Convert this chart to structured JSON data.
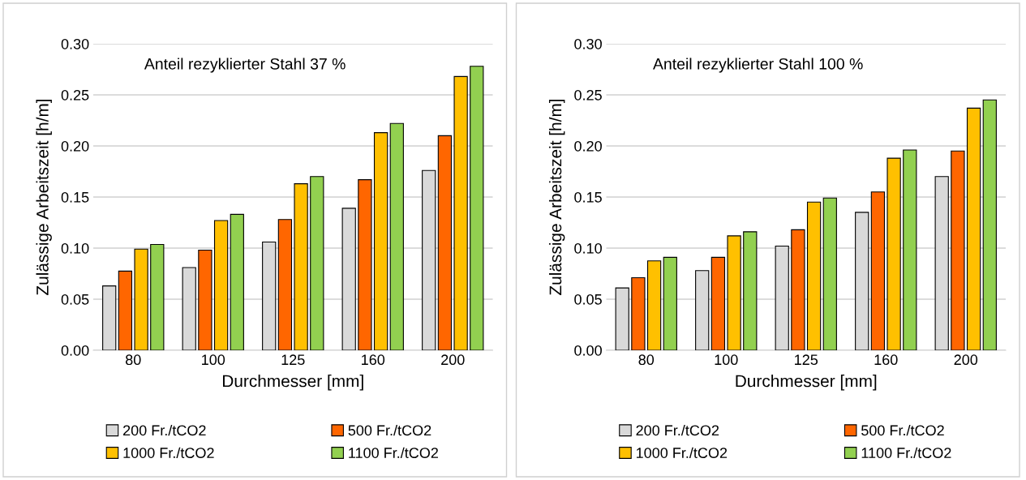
{
  "chart_data": [
    {
      "type": "bar",
      "title": "Anteil rezyklierter Stahl 37 %",
      "xlabel": "Durchmesser [mm]",
      "ylabel": "Zulässige Arbeitszeit [h/m]",
      "categories": [
        "80",
        "100",
        "125",
        "160",
        "200"
      ],
      "ylim": [
        0,
        0.3
      ],
      "yticks": [
        {
          "value": 0,
          "label": "0.00"
        },
        {
          "value": 0.05,
          "label": "0.05"
        },
        {
          "value": 0.1,
          "label": "0.10"
        },
        {
          "value": 0.15,
          "label": "0.15"
        },
        {
          "value": 0.2,
          "label": "0.20"
        },
        {
          "value": 0.25,
          "label": "0.25"
        },
        {
          "value": 0.3,
          "label": "0.30"
        }
      ],
      "grid": "y",
      "legend": "bottom",
      "series": [
        {
          "name": "200 Fr./tCO2",
          "color": "#d9d9d9",
          "values": [
            0.063,
            0.081,
            0.106,
            0.139,
            0.176
          ]
        },
        {
          "name": "500 Fr./tCO2",
          "color": "#ff6600",
          "values": [
            0.0775,
            0.098,
            0.128,
            0.167,
            0.21
          ]
        },
        {
          "name": "1000 Fr./tCO2",
          "color": "#ffc000",
          "values": [
            0.099,
            0.127,
            0.163,
            0.213,
            0.268
          ]
        },
        {
          "name": "1100 Fr./tCO2",
          "color": "#92d050",
          "values": [
            0.1036,
            0.133,
            0.17,
            0.222,
            0.278
          ]
        }
      ]
    },
    {
      "type": "bar",
      "title": "Anteil rezyklierter Stahl 100 %",
      "xlabel": "Durchmesser [mm]",
      "ylabel": "Zulässige Arbeitszeit [h/m]",
      "categories": [
        "80",
        "100",
        "125",
        "160",
        "200"
      ],
      "ylim": [
        0,
        0.3
      ],
      "yticks": [
        {
          "value": 0,
          "label": "0.00"
        },
        {
          "value": 0.05,
          "label": "0.05"
        },
        {
          "value": 0.1,
          "label": "0.10"
        },
        {
          "value": 0.15,
          "label": "0.15"
        },
        {
          "value": 0.2,
          "label": "0.20"
        },
        {
          "value": 0.25,
          "label": "0.25"
        },
        {
          "value": 0.3,
          "label": "0.30"
        }
      ],
      "grid": "y",
      "legend": "bottom",
      "series": [
        {
          "name": "200 Fr./tCO2",
          "color": "#d9d9d9",
          "values": [
            0.061,
            0.078,
            0.102,
            0.135,
            0.17
          ]
        },
        {
          "name": "500 Fr./tCO2",
          "color": "#ff6600",
          "values": [
            0.071,
            0.091,
            0.118,
            0.155,
            0.195
          ]
        },
        {
          "name": "1000 Fr./tCO2",
          "color": "#ffc000",
          "values": [
            0.0875,
            0.112,
            0.145,
            0.188,
            0.237
          ]
        },
        {
          "name": "1100 Fr./tCO2",
          "color": "#92d050",
          "values": [
            0.091,
            0.116,
            0.149,
            0.196,
            0.245
          ]
        }
      ]
    }
  ]
}
